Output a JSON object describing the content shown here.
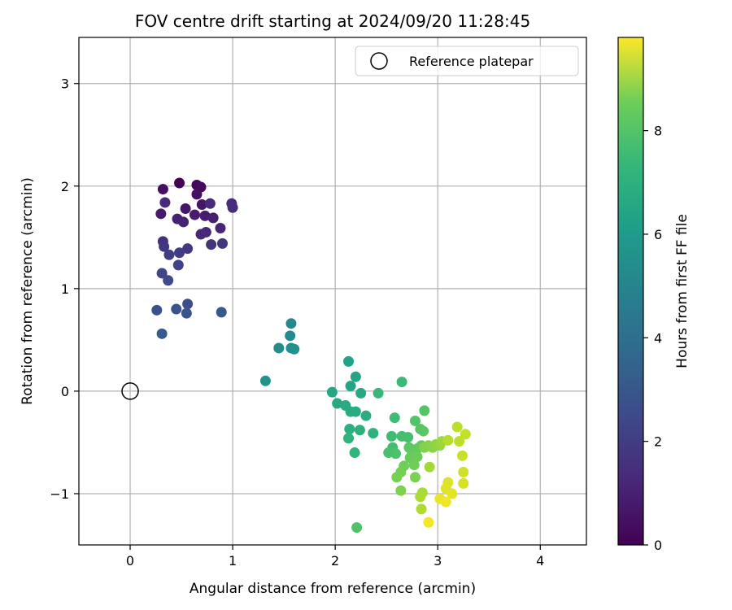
{
  "chart_data": {
    "type": "scatter",
    "title": "FOV centre drift starting at 2024/09/20 11:28:45",
    "xlabel": "Angular distance from reference (arcmin)",
    "ylabel": "Rotation from reference (arcmin)",
    "xlim": [
      -0.5,
      4.45
    ],
    "ylim": [
      -1.5,
      3.45
    ],
    "xticks": [
      0,
      1,
      2,
      3,
      4
    ],
    "yticks": [
      -1,
      0,
      1,
      2,
      3
    ],
    "xtick_labels": [
      "0",
      "1",
      "2",
      "3",
      "4"
    ],
    "ytick_labels": [
      "−1",
      "0",
      "1",
      "2",
      "3"
    ],
    "grid": true,
    "colormap": "viridis",
    "colorbar": {
      "label": "Hours from first FF file",
      "range": [
        0,
        9.8
      ],
      "ticks": [
        0,
        2,
        4,
        6,
        8
      ],
      "tick_labels": [
        "0",
        "2",
        "4",
        "6",
        "8"
      ]
    },
    "legend": {
      "position": "top-right",
      "label": "Reference platepar"
    },
    "reference_point": {
      "x": 0,
      "y": 0
    },
    "series": [
      {
        "name": "FOV centre drift",
        "points": [
          {
            "x": 0.48,
            "y": 2.03,
            "h": 0.05
          },
          {
            "x": 0.65,
            "y": 2.01,
            "h": 0.15
          },
          {
            "x": 0.69,
            "y": 1.99,
            "h": 0.25
          },
          {
            "x": 0.32,
            "y": 1.97,
            "h": 0.35
          },
          {
            "x": 0.65,
            "y": 1.92,
            "h": 0.45
          },
          {
            "x": 0.7,
            "y": 1.82,
            "h": 0.55
          },
          {
            "x": 0.54,
            "y": 1.78,
            "h": 0.6
          },
          {
            "x": 0.3,
            "y": 1.73,
            "h": 0.7
          },
          {
            "x": 0.63,
            "y": 1.72,
            "h": 0.75
          },
          {
            "x": 0.73,
            "y": 1.71,
            "h": 0.8
          },
          {
            "x": 0.81,
            "y": 1.69,
            "h": 0.85
          },
          {
            "x": 0.46,
            "y": 1.68,
            "h": 0.9
          },
          {
            "x": 0.52,
            "y": 1.65,
            "h": 0.95
          },
          {
            "x": 0.88,
            "y": 1.59,
            "h": 1.0
          },
          {
            "x": 0.74,
            "y": 1.55,
            "h": 1.05
          },
          {
            "x": 0.69,
            "y": 1.53,
            "h": 1.1
          },
          {
            "x": 0.34,
            "y": 1.84,
            "h": 1.15
          },
          {
            "x": 0.78,
            "y": 1.83,
            "h": 1.2
          },
          {
            "x": 0.99,
            "y": 1.83,
            "h": 1.25
          },
          {
            "x": 1.0,
            "y": 1.79,
            "h": 1.3
          },
          {
            "x": 0.32,
            "y": 1.46,
            "h": 1.4
          },
          {
            "x": 0.79,
            "y": 1.43,
            "h": 1.5
          },
          {
            "x": 0.9,
            "y": 1.44,
            "h": 1.55
          },
          {
            "x": 0.33,
            "y": 1.41,
            "h": 1.6
          },
          {
            "x": 0.56,
            "y": 1.39,
            "h": 1.65
          },
          {
            "x": 0.48,
            "y": 1.35,
            "h": 1.75
          },
          {
            "x": 0.38,
            "y": 1.33,
            "h": 1.85
          },
          {
            "x": 0.47,
            "y": 1.23,
            "h": 1.95
          },
          {
            "x": 0.31,
            "y": 1.15,
            "h": 2.1
          },
          {
            "x": 0.37,
            "y": 1.08,
            "h": 2.2
          },
          {
            "x": 0.56,
            "y": 0.85,
            "h": 2.35
          },
          {
            "x": 0.26,
            "y": 0.79,
            "h": 2.45
          },
          {
            "x": 0.45,
            "y": 0.8,
            "h": 2.55
          },
          {
            "x": 0.55,
            "y": 0.76,
            "h": 2.6
          },
          {
            "x": 0.89,
            "y": 0.77,
            "h": 2.7
          },
          {
            "x": 0.31,
            "y": 0.56,
            "h": 2.8
          },
          {
            "x": 1.57,
            "y": 0.66,
            "h": 4.6
          },
          {
            "x": 1.56,
            "y": 0.54,
            "h": 4.7
          },
          {
            "x": 1.45,
            "y": 0.42,
            "h": 4.8
          },
          {
            "x": 1.57,
            "y": 0.42,
            "h": 4.85
          },
          {
            "x": 1.6,
            "y": 0.41,
            "h": 4.9
          },
          {
            "x": 1.32,
            "y": 0.1,
            "h": 5.0
          },
          {
            "x": 2.13,
            "y": 0.29,
            "h": 5.6
          },
          {
            "x": 2.2,
            "y": 0.14,
            "h": 5.7
          },
          {
            "x": 2.15,
            "y": 0.05,
            "h": 5.75
          },
          {
            "x": 1.97,
            "y": -0.01,
            "h": 5.8
          },
          {
            "x": 2.25,
            "y": -0.02,
            "h": 5.85
          },
          {
            "x": 2.02,
            "y": -0.12,
            "h": 5.9
          },
          {
            "x": 2.1,
            "y": -0.14,
            "h": 5.95
          },
          {
            "x": 2.15,
            "y": -0.2,
            "h": 6.0
          },
          {
            "x": 2.2,
            "y": -0.2,
            "h": 6.05
          },
          {
            "x": 2.3,
            "y": -0.24,
            "h": 6.1
          },
          {
            "x": 2.14,
            "y": -0.37,
            "h": 6.15
          },
          {
            "x": 2.24,
            "y": -0.38,
            "h": 6.2
          },
          {
            "x": 2.37,
            "y": -0.41,
            "h": 6.25
          },
          {
            "x": 2.13,
            "y": -0.46,
            "h": 6.3
          },
          {
            "x": 2.19,
            "y": -0.6,
            "h": 6.4
          },
          {
            "x": 2.42,
            "y": -0.02,
            "h": 6.6
          },
          {
            "x": 2.65,
            "y": 0.09,
            "h": 6.65
          },
          {
            "x": 2.58,
            "y": -0.26,
            "h": 6.7
          },
          {
            "x": 2.55,
            "y": -0.44,
            "h": 6.75
          },
          {
            "x": 2.56,
            "y": -0.55,
            "h": 6.8
          },
          {
            "x": 2.65,
            "y": -0.44,
            "h": 6.85
          },
          {
            "x": 2.71,
            "y": -0.45,
            "h": 6.9
          },
          {
            "x": 2.52,
            "y": -0.6,
            "h": 6.95
          },
          {
            "x": 2.59,
            "y": -0.61,
            "h": 7.0
          },
          {
            "x": 2.21,
            "y": -1.33,
            "h": 7.05
          },
          {
            "x": 2.78,
            "y": -0.29,
            "h": 7.1
          },
          {
            "x": 2.87,
            "y": -0.19,
            "h": 7.15
          },
          {
            "x": 2.83,
            "y": -0.37,
            "h": 7.2
          },
          {
            "x": 2.86,
            "y": -0.39,
            "h": 7.25
          },
          {
            "x": 2.72,
            "y": -0.55,
            "h": 7.3
          },
          {
            "x": 2.75,
            "y": -0.59,
            "h": 7.35
          },
          {
            "x": 2.8,
            "y": -0.56,
            "h": 7.4
          },
          {
            "x": 2.84,
            "y": -0.53,
            "h": 7.45
          },
          {
            "x": 2.73,
            "y": -0.65,
            "h": 7.5
          },
          {
            "x": 2.8,
            "y": -0.64,
            "h": 7.55
          },
          {
            "x": 2.67,
            "y": -0.73,
            "h": 7.6
          },
          {
            "x": 2.77,
            "y": -0.72,
            "h": 7.65
          },
          {
            "x": 2.64,
            "y": -0.79,
            "h": 7.7
          },
          {
            "x": 2.6,
            "y": -0.84,
            "h": 7.75
          },
          {
            "x": 2.78,
            "y": -0.84,
            "h": 7.8
          },
          {
            "x": 2.64,
            "y": -0.97,
            "h": 7.85
          },
          {
            "x": 2.87,
            "y": -0.55,
            "h": 7.9
          },
          {
            "x": 2.91,
            "y": -0.53,
            "h": 7.95
          },
          {
            "x": 2.95,
            "y": -0.55,
            "h": 8.0
          },
          {
            "x": 2.98,
            "y": -0.52,
            "h": 8.1
          },
          {
            "x": 3.02,
            "y": -0.53,
            "h": 8.2
          },
          {
            "x": 3.04,
            "y": -0.49,
            "h": 8.3
          },
          {
            "x": 2.92,
            "y": -0.74,
            "h": 8.4
          },
          {
            "x": 2.85,
            "y": -0.99,
            "h": 8.5
          },
          {
            "x": 2.83,
            "y": -1.03,
            "h": 8.55
          },
          {
            "x": 2.84,
            "y": -1.15,
            "h": 8.6
          },
          {
            "x": 3.1,
            "y": -0.48,
            "h": 8.7
          },
          {
            "x": 3.19,
            "y": -0.35,
            "h": 8.8
          },
          {
            "x": 3.21,
            "y": -0.49,
            "h": 8.85
          },
          {
            "x": 3.27,
            "y": -0.42,
            "h": 8.9
          },
          {
            "x": 3.24,
            "y": -0.63,
            "h": 9.0
          },
          {
            "x": 3.25,
            "y": -0.79,
            "h": 9.1
          },
          {
            "x": 3.25,
            "y": -0.9,
            "h": 9.2
          },
          {
            "x": 3.1,
            "y": -0.89,
            "h": 9.3
          },
          {
            "x": 3.08,
            "y": -0.95,
            "h": 9.35
          },
          {
            "x": 3.14,
            "y": -1.0,
            "h": 9.4
          },
          {
            "x": 3.02,
            "y": -1.05,
            "h": 9.5
          },
          {
            "x": 3.08,
            "y": -1.08,
            "h": 9.6
          },
          {
            "x": 2.91,
            "y": -1.28,
            "h": 9.7
          }
        ]
      }
    ]
  }
}
